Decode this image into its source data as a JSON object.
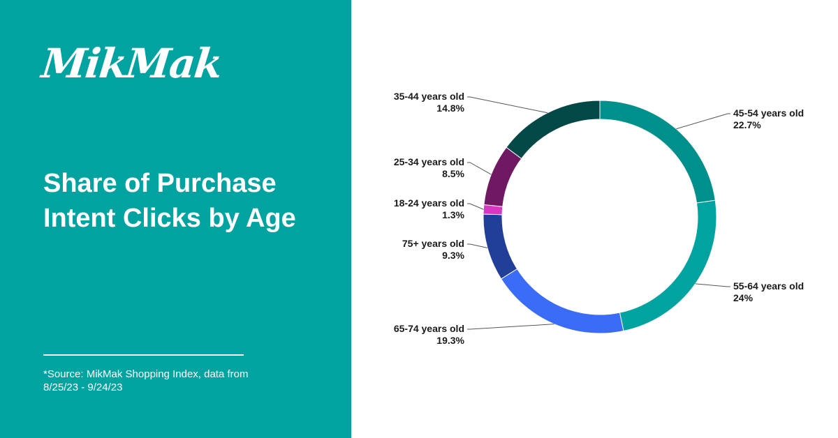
{
  "brand": {
    "logo_text": "MikMak",
    "panel_color": "#00a3a0"
  },
  "headline": "Share of Purchase Intent Clicks by Age",
  "source_note": "*Source: MikMak Shopping Index, data from 8/25/23 - 9/24/23",
  "chart_data": {
    "type": "pie",
    "subtype": "donut",
    "title": "Share of Purchase Intent Clicks by Age",
    "unit": "%",
    "slices": [
      {
        "label": "45-54 years old",
        "value": 22.7,
        "display": "22.7%",
        "color": "#00908c"
      },
      {
        "label": "55-64 years old",
        "value": 24.0,
        "display": "24%",
        "color": "#00a39f"
      },
      {
        "label": "65-74 years old",
        "value": 19.3,
        "display": "19.3%",
        "color": "#3b6cf7"
      },
      {
        "label": "75+ years old",
        "value": 9.3,
        "display": "9.3%",
        "color": "#213f98"
      },
      {
        "label": "18-24 years old",
        "value": 1.3,
        "display": "1.3%",
        "color": "#d836c3"
      },
      {
        "label": "25-34 years old",
        "value": 8.5,
        "display": "8.5%",
        "color": "#6f1963"
      },
      {
        "label": "35-44 years old",
        "value": 14.8,
        "display": "14.8%",
        "color": "#014847"
      }
    ]
  }
}
